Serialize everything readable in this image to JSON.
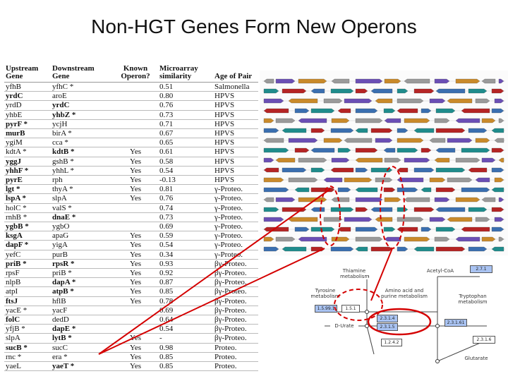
{
  "slide": {
    "title": "Non-HGT Genes Form New Operons"
  },
  "table": {
    "headers": [
      "Upstream Gene",
      "Downstream Gene",
      "Known Operon?",
      "Microarray similarity",
      "Age of Pair"
    ],
    "rows": [
      {
        "up": "yfhB",
        "down": "yfhC *",
        "known": "",
        "sim": "0.51",
        "age": "Salmonella",
        "upBold": false,
        "downBold": false
      },
      {
        "up": "yrdC",
        "down": "aroE",
        "known": "",
        "sim": "0.80",
        "age": "HPVS",
        "upBold": true,
        "downBold": false
      },
      {
        "up": "yrdD",
        "down": "yrdC",
        "known": "",
        "sim": "0.76",
        "age": "HPVS",
        "upBold": false,
        "downBold": true
      },
      {
        "up": "yhbE",
        "down": "yhbZ *",
        "known": "",
        "sim": "0.73",
        "age": "HPVS",
        "upBold": false,
        "downBold": true
      },
      {
        "up": "pyrF *",
        "down": "ycjH",
        "known": "",
        "sim": "0.71",
        "age": "HPVS",
        "upBold": true,
        "downBold": false
      },
      {
        "up": "murB",
        "down": "birA *",
        "known": "",
        "sim": "0.67",
        "age": "HPVS",
        "upBold": true,
        "downBold": false
      },
      {
        "up": "ygiM",
        "down": "cca *",
        "known": "",
        "sim": "0.65",
        "age": "HPVS",
        "upBold": false,
        "downBold": false
      },
      {
        "up": "kdtA *",
        "down": "kdtB *",
        "known": "Yes",
        "sim": "0.61",
        "age": "HPVS",
        "upBold": false,
        "downBold": true
      },
      {
        "up": "yggJ",
        "down": "gshB *",
        "known": "Yes",
        "sim": "0.58",
        "age": "HPVS",
        "upBold": true,
        "downBold": false
      },
      {
        "up": "yhhF *",
        "down": "yhhL *",
        "known": "Yes",
        "sim": "0.54",
        "age": "HPVS",
        "upBold": true,
        "downBold": false
      },
      {
        "up": "pyrE",
        "down": "rph",
        "known": "Yes",
        "sim": "-0.13",
        "age": "HPVS",
        "upBold": true,
        "downBold": false
      },
      {
        "up": "lgt *",
        "down": "thyA *",
        "known": "Yes",
        "sim": "0.81",
        "age": "γ-Proteo.",
        "upBold": true,
        "downBold": false
      },
      {
        "up": "lspA *",
        "down": "slpA",
        "known": "Yes",
        "sim": "0.76",
        "age": "γ-Proteo.",
        "upBold": true,
        "downBold": false
      },
      {
        "up": "holC *",
        "down": "valS *",
        "known": "",
        "sim": "0.74",
        "age": "γ-Proteo.",
        "upBold": false,
        "downBold": false
      },
      {
        "up": "rnhB *",
        "down": "dnaE *",
        "known": "",
        "sim": "0.73",
        "age": "γ-Proteo.",
        "upBold": false,
        "downBold": true
      },
      {
        "up": "ygbB *",
        "down": "ygbO",
        "known": "",
        "sim": "0.69",
        "age": "γ-Proteo.",
        "upBold": true,
        "downBold": false
      },
      {
        "up": "ksgA",
        "down": "apaG",
        "known": "Yes",
        "sim": "0.59",
        "age": "γ-Proteo.",
        "upBold": true,
        "downBold": false
      },
      {
        "up": "dapF *",
        "down": "yigA",
        "known": "Yes",
        "sim": "0.54",
        "age": "γ-Proteo.",
        "upBold": true,
        "downBold": false
      },
      {
        "up": "yefC",
        "down": "purB",
        "known": "Yes",
        "sim": "0.34",
        "age": "γ-Proteo.",
        "upBold": false,
        "downBold": false
      },
      {
        "up": "priB *",
        "down": "rpsR *",
        "known": "Yes",
        "sim": "0.93",
        "age": "βγ-Proteo.",
        "upBold": true,
        "downBold": true
      },
      {
        "up": "rpsF",
        "down": "priB *",
        "known": "Yes",
        "sim": "0.92",
        "age": "βγ-Proteo.",
        "upBold": false,
        "downBold": false
      },
      {
        "up": "nlpB",
        "down": "dapA *",
        "known": "Yes",
        "sim": "0.87",
        "age": "βγ-Proteo.",
        "upBold": false,
        "downBold": true
      },
      {
        "up": "atpI",
        "down": "atpB *",
        "known": "Yes",
        "sim": "0.85",
        "age": "βγ-Proteo.",
        "upBold": false,
        "downBold": true
      },
      {
        "up": "ftsJ",
        "down": "hflB",
        "known": "Yes",
        "sim": "0.78",
        "age": "βγ-Proteo.",
        "upBold": true,
        "downBold": false
      },
      {
        "up": "yacE *",
        "down": "yacF",
        "known": "",
        "sim": "0.69",
        "age": "βγ-Proteo.",
        "upBold": false,
        "downBold": false
      },
      {
        "up": "folC",
        "down": "dedD",
        "known": "",
        "sim": "0.64",
        "age": "βγ-Proteo.",
        "upBold": true,
        "downBold": false
      },
      {
        "up": "yfjB *",
        "down": "dapE *",
        "known": "",
        "sim": "0.54",
        "age": "βγ-Proteo.",
        "upBold": false,
        "downBold": true
      },
      {
        "up": "slpA",
        "down": "lytB *",
        "known": "Yes",
        "sim": "-",
        "age": "βγ-Proteo.",
        "upBold": false,
        "downBold": true
      },
      {
        "up": "sucB *",
        "down": "sucC",
        "known": "Yes",
        "sim": "0.98",
        "age": "Proteo.",
        "upBold": true,
        "downBold": false
      },
      {
        "up": "rnc *",
        "down": "era *",
        "known": "Yes",
        "sim": "0.85",
        "age": "Proteo.",
        "upBold": false,
        "downBold": false
      },
      {
        "up": "yaeL",
        "down": "yaeT *",
        "known": "Yes",
        "sim": "0.85",
        "age": "Proteo.",
        "upBold": false,
        "downBold": true
      }
    ]
  },
  "pathway": {
    "nodes": [
      {
        "label": "Thiamine metabolism",
        "id": "n1"
      },
      {
        "label": "Tyrosine metabolism",
        "id": "n2"
      },
      {
        "label": "Amino acid and purine metabolism",
        "id": "n3"
      },
      {
        "label": "D-Urate",
        "id": "n4"
      },
      {
        "label": "Acetyl-CoA",
        "id": "n5"
      },
      {
        "label": "Tryptophan metabolism",
        "id": "n6"
      },
      {
        "label": "Glutarate",
        "id": "n7"
      }
    ],
    "enzymes": [
      "1.5.99.1",
      "1.5.1",
      "2.3.1.4",
      "2.3.1.5",
      "2.3.1.61",
      "1.2.4.2",
      "2.7.1",
      "2.3.1.6"
    ]
  },
  "colors": {
    "accent": "#d40000",
    "enzyme_fill": "#a9c3f2",
    "gene_purple": "#6b4fb5",
    "gene_teal": "#1f8c8c",
    "gene_gray": "#9a9a9a",
    "gene_red": "#b52424"
  }
}
